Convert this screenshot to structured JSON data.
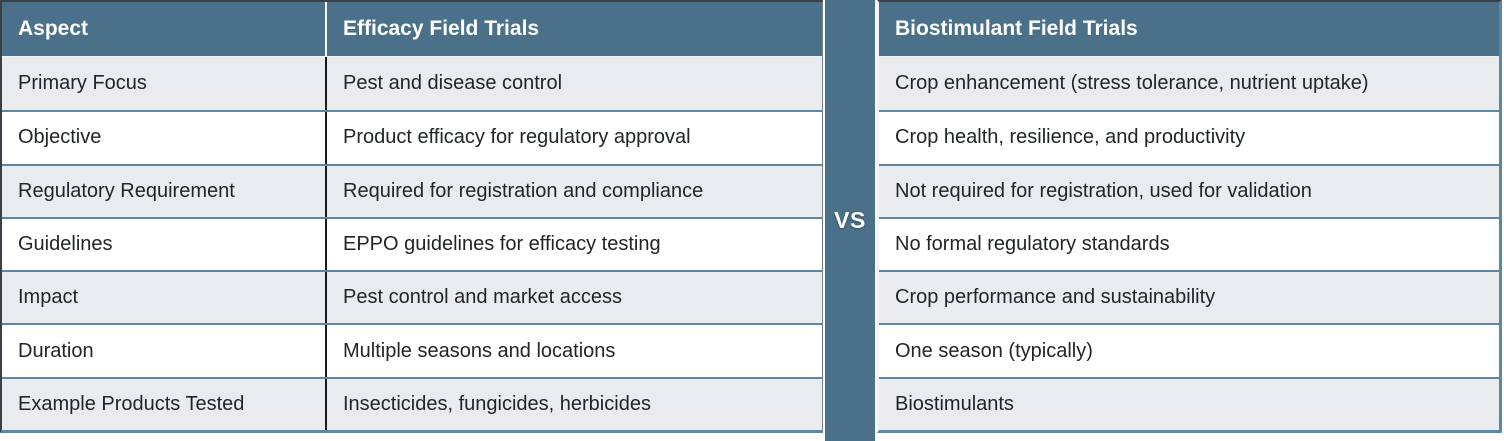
{
  "vs": {
    "label": "VS"
  },
  "chart_data": {
    "type": "table",
    "columns": [
      "Aspect",
      "Efficacy Field Trials",
      "Biostimulant Field Trials"
    ],
    "rows": [
      [
        "Primary Focus",
        "Pest and disease control",
        "Crop enhancement (stress tolerance, nutrient uptake)"
      ],
      [
        "Objective",
        "Product efficacy for regulatory approval",
        "Crop health, resilience, and productivity"
      ],
      [
        "Regulatory Requirement",
        "Required for registration and compliance",
        "Not required for registration, used for validation"
      ],
      [
        "Guidelines",
        "EPPO guidelines for efficacy testing",
        "No formal regulatory standards"
      ],
      [
        "Impact",
        "Pest control and market access",
        "Crop performance and sustainability"
      ],
      [
        "Duration",
        "Multiple seasons and locations",
        "One season (typically)"
      ],
      [
        "Example Products Tested",
        "Insecticides, fungicides, herbicides",
        "Biostimulants"
      ]
    ],
    "layout": {
      "divider_label": "VS",
      "alternating_rows": true,
      "legend_position": "none"
    }
  },
  "colors": {
    "header_bg": "#4a7189",
    "header_text": "#ffffff",
    "row_bg": "#ffffff",
    "row_alt_bg": "#e9ebee",
    "separator": "#5d87a0",
    "text": "#212529"
  }
}
